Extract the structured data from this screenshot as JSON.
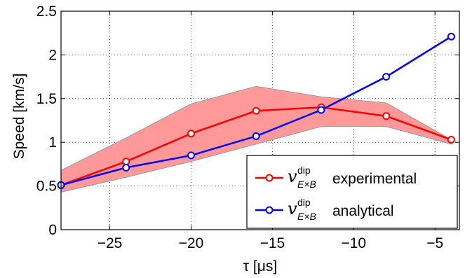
{
  "chart_data": {
    "type": "line",
    "title": "",
    "xlabel": "τ [μs]",
    "ylabel": "Speed [km/s]",
    "xlim": [
      -28,
      -3.5
    ],
    "ylim": [
      0,
      2.5
    ],
    "xticks": [
      -25,
      -20,
      -15,
      -10,
      -5
    ],
    "xtick_labels": [
      "−25",
      "−20",
      "−15",
      "−10",
      "−5"
    ],
    "yticks": [
      0,
      0.5,
      1,
      1.5,
      2,
      2.5
    ],
    "ytick_labels": [
      "0",
      "0.5",
      "1",
      "1.5",
      "2",
      "2.5"
    ],
    "grid": true,
    "legend_position": "bottom-right",
    "series": [
      {
        "name": "v_{E×B}^{dip} experimental",
        "legend": {
          "symbol": "v",
          "sup": "dip",
          "sub": "E×B",
          "text": "experimental"
        },
        "color": "#ff0000",
        "x": [
          -28,
          -24,
          -20,
          -16,
          -12,
          -8,
          -4
        ],
        "y": [
          0.51,
          0.78,
          1.1,
          1.36,
          1.4,
          1.3,
          1.03
        ]
      },
      {
        "name": "v_{E×B}^{dip} analytical",
        "legend": {
          "symbol": "v",
          "sup": "dip",
          "sub": "E×B",
          "text": "analytical"
        },
        "color": "#0000ff",
        "x": [
          -28,
          -24,
          -20,
          -16,
          -12,
          -8,
          -4
        ],
        "y": [
          0.51,
          0.71,
          0.85,
          1.07,
          1.37,
          1.75,
          2.21
        ]
      }
    ],
    "band": {
      "color": "#ff9999",
      "edge_color": "#999999",
      "x": [
        -28,
        -24,
        -20,
        -16,
        -12,
        -8,
        -4
      ],
      "upper": [
        0.68,
        1.05,
        1.44,
        1.64,
        1.52,
        1.45,
        1.03
      ],
      "lower": [
        0.43,
        0.6,
        0.78,
        0.98,
        1.18,
        1.18,
        0.98
      ]
    }
  }
}
